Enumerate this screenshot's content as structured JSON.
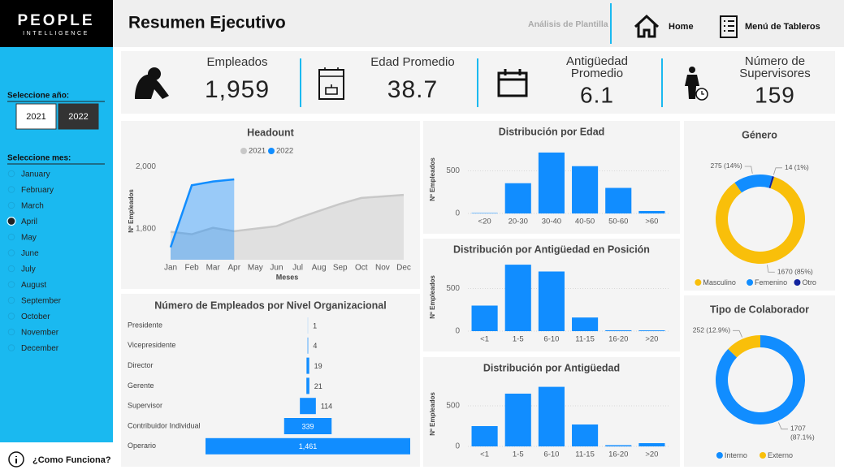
{
  "logo": {
    "name": "PEOPLE",
    "tagline": "INTELLIGENCE"
  },
  "header": {
    "title": "Resumen Ejecutivo",
    "subtitle": "Análisis de Plantilla",
    "nav": [
      "Home",
      "Menú de Tableros"
    ]
  },
  "sidebar": {
    "year_label": "Seleccione año:",
    "years": [
      "2021",
      "2022"
    ],
    "selected_year": "2022",
    "month_label": "Seleccione mes:",
    "months": [
      "January",
      "February",
      "March",
      "April",
      "May",
      "June",
      "July",
      "August",
      "September",
      "October",
      "November",
      "December"
    ],
    "selected_month": "April",
    "help": "¿Como Funciona?"
  },
  "kpis": [
    {
      "label": "Empleados",
      "value": "1,959"
    },
    {
      "label": "Edad Promedio",
      "value": 38.7
    },
    {
      "label": "Antigüedad Promedio",
      "value": 6.1
    },
    {
      "label": "Número de Supervisores",
      "value": 159
    }
  ],
  "chart_data": [
    {
      "type": "line",
      "title": "Headount",
      "x_label": "Meses",
      "y_label": "Nº Empleados",
      "categories": [
        "Jan",
        "Feb",
        "Mar",
        "Apr",
        "May",
        "Jun",
        "Jul",
        "Aug",
        "Sep",
        "Oct",
        "Nov",
        "Dec"
      ],
      "series": [
        {
          "name": "2021",
          "color": "#c8c8c8",
          "values": [
            1790,
            1782,
            1803,
            1792,
            1800,
            1808,
            1834,
            1857,
            1880,
            1899,
            1904,
            1909
          ]
        },
        {
          "name": "2022",
          "color": "#118dff",
          "values": [
            1740,
            1940,
            1952,
            1959,
            null,
            null,
            null,
            null,
            null,
            null,
            null,
            null
          ]
        }
      ],
      "ylim": [
        1700,
        2040
      ],
      "yticks": [
        {
          "value": 1800,
          "label": "1,800"
        },
        {
          "value": 2000,
          "label": "2,000"
        }
      ],
      "area": true,
      "legend": "top"
    },
    {
      "type": "funnel",
      "title": "Número de Empleados por Nivel Organizacional",
      "categories": [
        "Presidente",
        "Vicepresidente",
        "Director",
        "Gerente",
        "Supervisor",
        "Contribuidor Individual",
        "Operario"
      ],
      "values": [
        1,
        4,
        19,
        21,
        114,
        339,
        1461
      ],
      "value_labels": [
        "1",
        "4",
        "19",
        "21",
        "114",
        "339",
        "1,461"
      ],
      "color": "#118dff"
    },
    {
      "type": "bar",
      "title": "Distribución por Edad",
      "y_label": "Nº Empleados",
      "categories": [
        "<20",
        "20-30",
        "30-40",
        "40-50",
        "50-60",
        ">60"
      ],
      "values": [
        5,
        355,
        715,
        555,
        300,
        29
      ],
      "color": "#118dff",
      "ylim": [
        0,
        800
      ],
      "yticks": [
        0,
        500
      ],
      "grid": true
    },
    {
      "type": "bar",
      "title": "Distribución por Antigüedad en Posición",
      "y_label": "Nº Empleados",
      "categories": [
        "<1",
        "1-5",
        "6-10",
        "11-15",
        "16-20",
        ">20"
      ],
      "values": [
        300,
        780,
        700,
        160,
        10,
        9
      ],
      "color": "#118dff",
      "ylim": [
        0,
        800
      ],
      "yticks": [
        0,
        500
      ],
      "grid": true
    },
    {
      "type": "bar",
      "title": "Distribución por Antigüedad",
      "y_label": "Nº Empleados",
      "categories": [
        "<1",
        "1-5",
        "6-10",
        "11-15",
        "16-20",
        ">20"
      ],
      "values": [
        250,
        650,
        734,
        270,
        15,
        40
      ],
      "color": "#118dff",
      "ylim": [
        0,
        800
      ],
      "yticks": [
        0,
        500
      ],
      "grid": true
    },
    {
      "type": "donut",
      "title": "Género",
      "categories": [
        "Masculino",
        "Femenino",
        "Otro"
      ],
      "values": [
        1670,
        275,
        14
      ],
      "value_labels": [
        "1670 (85%)",
        "275 (14%)",
        "14 (1%)"
      ],
      "colors": [
        "#f9bf0a",
        "#118dff",
        "#12239e"
      ],
      "legend": "bottom"
    },
    {
      "type": "donut",
      "title": "Tipo de Colaborador",
      "categories": [
        "Interno",
        "Externo"
      ],
      "values": [
        1707,
        252
      ],
      "value_labels": [
        "1707 (87.1%)",
        "252 (12.9%)"
      ],
      "colors": [
        "#118dff",
        "#f9bf0a"
      ],
      "legend": "bottom"
    }
  ]
}
